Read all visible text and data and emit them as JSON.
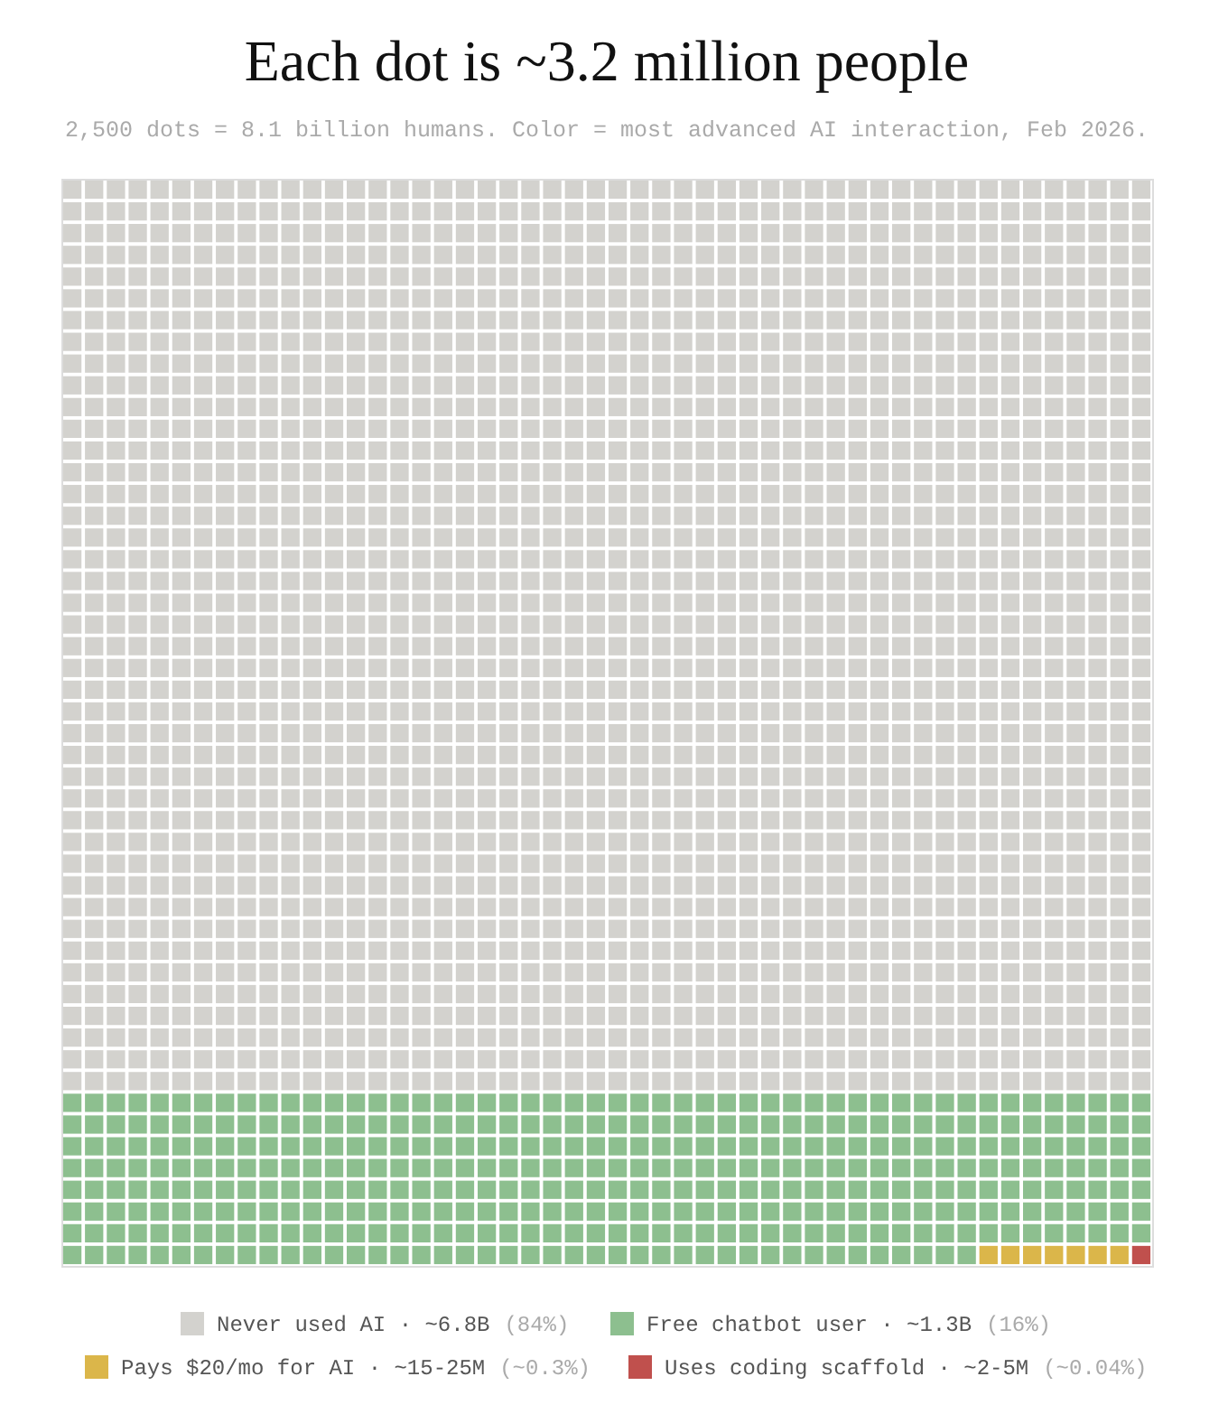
{
  "chart_data": {
    "type": "other",
    "title": "Each dot is ~3.2 million people",
    "subtitle": "2,500 dots = 8.1 billion humans. Color = most advanced AI interaction, Feb 2026.",
    "categories": [
      "Never used AI · ~6.8B",
      "Free chatbot user · ~1.3B",
      "Pays $20/mo for AI · ~15-25M",
      "Uses coding scaffold · ~2-5M"
    ],
    "values": [
      84,
      16,
      0.3,
      0.04
    ],
    "value_labels": [
      "(84%)",
      "(16%)",
      "(~0.3%)",
      "(~0.04%)"
    ],
    "colors": [
      "#d3d2ce",
      "#8dbf8f",
      "#dbb64a",
      "#c0504d"
    ]
  }
}
